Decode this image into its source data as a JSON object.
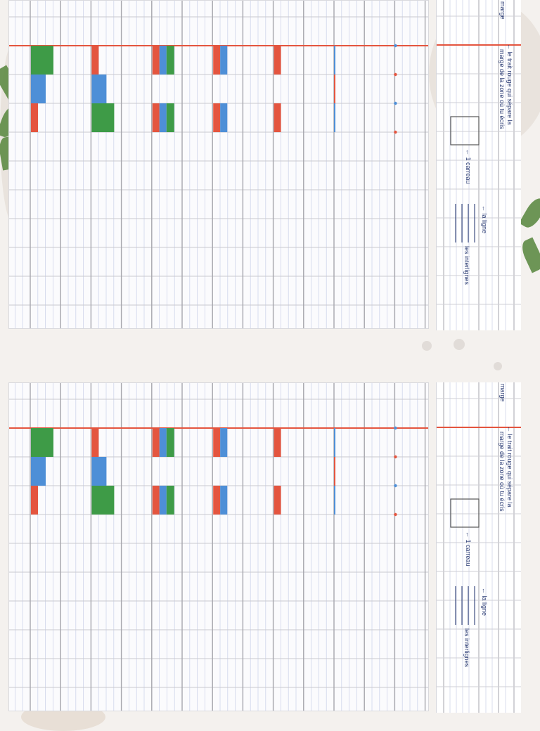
{
  "panels": [
    {
      "legend": {
        "marge_label": "marge",
        "red_line_text_1": "← le trait rouge qui sépare la",
        "red_line_text_2": "marge de la zone où tu écris",
        "square_text": "← 1 carreau",
        "line_text": "← la ligne",
        "interlignes_text": "les interlignes"
      }
    },
    {
      "legend": {
        "marge_label": "marge",
        "red_line_text_1": "← le trait rouge qui sépare la",
        "red_line_text_2": "marge de la zone où tu écris",
        "square_text": "← 1 carreau",
        "line_text": "← la ligne",
        "interlignes_text": "les interlignes"
      }
    }
  ],
  "colors": {
    "red": "#e4553f",
    "blue": "#4e8fd7",
    "green": "#3e9b47",
    "grid_major": "#a6a6ad",
    "grid_minor": "#cfd5ea",
    "ink": "#2c3d75"
  }
}
